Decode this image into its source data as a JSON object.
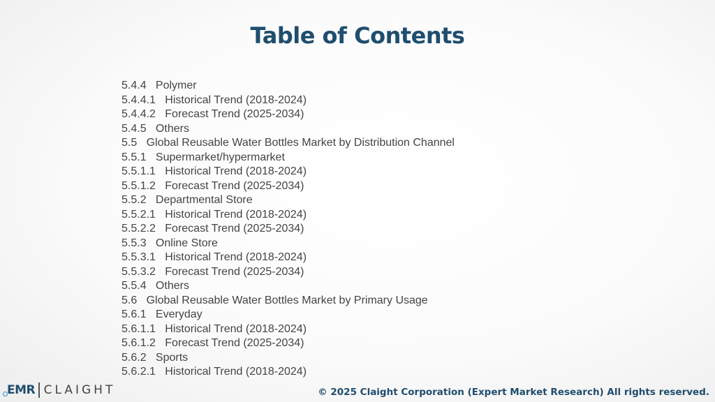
{
  "title": "Table of Contents",
  "toc": [
    "5.4.4   Polymer",
    "5.4.4.1   Historical Trend (2018-2024)",
    "5.4.4.2   Forecast Trend (2025-2034)",
    "5.4.5   Others",
    "5.5   Global Reusable Water Bottles Market by Distribution Channel",
    "5.5.1   Supermarket/hypermarket",
    "5.5.1.1   Historical Trend (2018-2024)",
    "5.5.1.2   Forecast Trend (2025-2034)",
    "5.5.2   Departmental Store",
    "5.5.2.1   Historical Trend (2018-2024)",
    "5.5.2.2   Forecast Trend (2025-2034)",
    "5.5.3   Online Store",
    "5.5.3.1   Historical Trend (2018-2024)",
    "5.5.3.2   Forecast Trend (2025-2034)",
    "5.5.4   Others",
    "5.6   Global Reusable Water Bottles Market by Primary Usage",
    "5.6.1   Everyday",
    "5.6.1.1   Historical Trend (2018-2024)",
    "5.6.1.2   Forecast Trend (2025-2034)",
    "5.6.2   Sports",
    "5.6.2.1   Historical Trend (2018-2024)"
  ],
  "logo": {
    "left": "EMR",
    "right": "CLAIGHT"
  },
  "footer": "© 2025 Claight Corporation (Expert Market Research) All rights reserved.",
  "colors": {
    "title": "#1f4e6e",
    "text": "#444444",
    "accent": "#2a8fd6"
  }
}
